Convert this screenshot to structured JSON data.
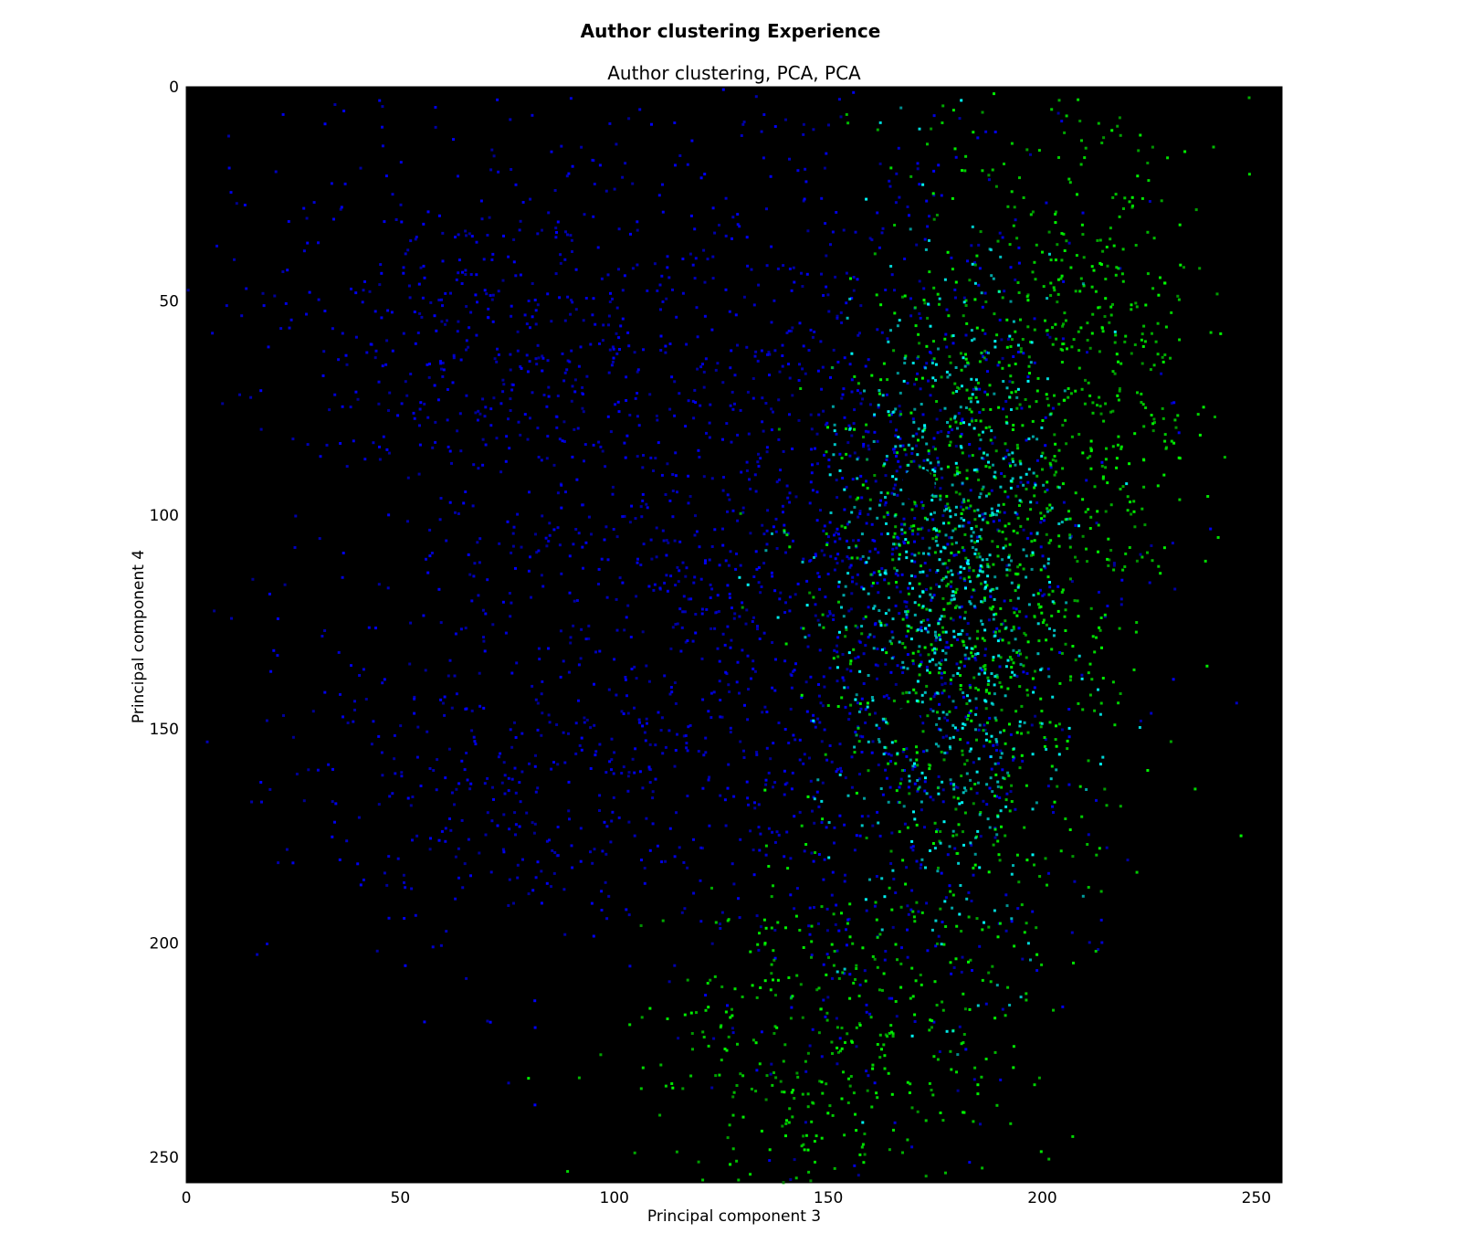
{
  "figure": {
    "suptitle": "Author clustering Experience",
    "title": "Author clustering, PCA, PCA",
    "xlabel": "Principal component 3",
    "ylabel": "Principal component 4"
  },
  "chart_data": {
    "type": "heatmap",
    "title": "Author clustering, PCA, PCA",
    "xlabel": "Principal component 3",
    "ylabel": "Principal component 4",
    "xlim": [
      0,
      256
    ],
    "ylim": [
      256,
      0
    ],
    "y_axis_inverted": true,
    "x_ticks": [
      0,
      50,
      100,
      150,
      200,
      250
    ],
    "y_ticks": [
      0,
      50,
      100,
      150,
      200,
      250
    ],
    "x_tick_labels": [
      "0",
      "50",
      "100",
      "150",
      "200",
      "250"
    ],
    "y_tick_labels": [
      "0",
      "50",
      "100",
      "150",
      "200",
      "250"
    ],
    "grid": false,
    "legend": "none",
    "background_color": "#000000",
    "channels": [
      {
        "color": "#0000ff",
        "description": "blue channel point density"
      },
      {
        "color": "#00ff00",
        "description": "green channel point density"
      },
      {
        "color": "#00ffff",
        "description": "overlap of blue and green"
      }
    ],
    "density_regions": [
      {
        "color": "#0000ff",
        "center": [
          125,
          110
        ],
        "spread": [
          38,
          50
        ],
        "weight": 1.0
      },
      {
        "color": "#0000ff",
        "center": [
          165,
          120
        ],
        "spread": [
          25,
          55
        ],
        "weight": 1.0
      },
      {
        "color": "#0000ff",
        "center": [
          70,
          55
        ],
        "spread": [
          35,
          25
        ],
        "weight": 0.5
      },
      {
        "color": "#0000ff",
        "center": [
          70,
          160
        ],
        "spread": [
          30,
          20
        ],
        "weight": 0.35
      },
      {
        "color": "#00ff00",
        "center": [
          185,
          110
        ],
        "spread": [
          18,
          45
        ],
        "weight": 1.0
      },
      {
        "color": "#00ff00",
        "center": [
          215,
          60
        ],
        "spread": [
          12,
          30
        ],
        "weight": 0.35
      },
      {
        "color": "#00ff00",
        "center": [
          150,
          225
        ],
        "spread": [
          22,
          20
        ],
        "weight": 0.4
      },
      {
        "color": "#00ffff",
        "center": [
          178,
          120
        ],
        "spread": [
          15,
          40
        ],
        "weight": 0.8
      }
    ],
    "voids": [
      [
        171,
        93
      ],
      [
        168,
        149
      ]
    ]
  }
}
